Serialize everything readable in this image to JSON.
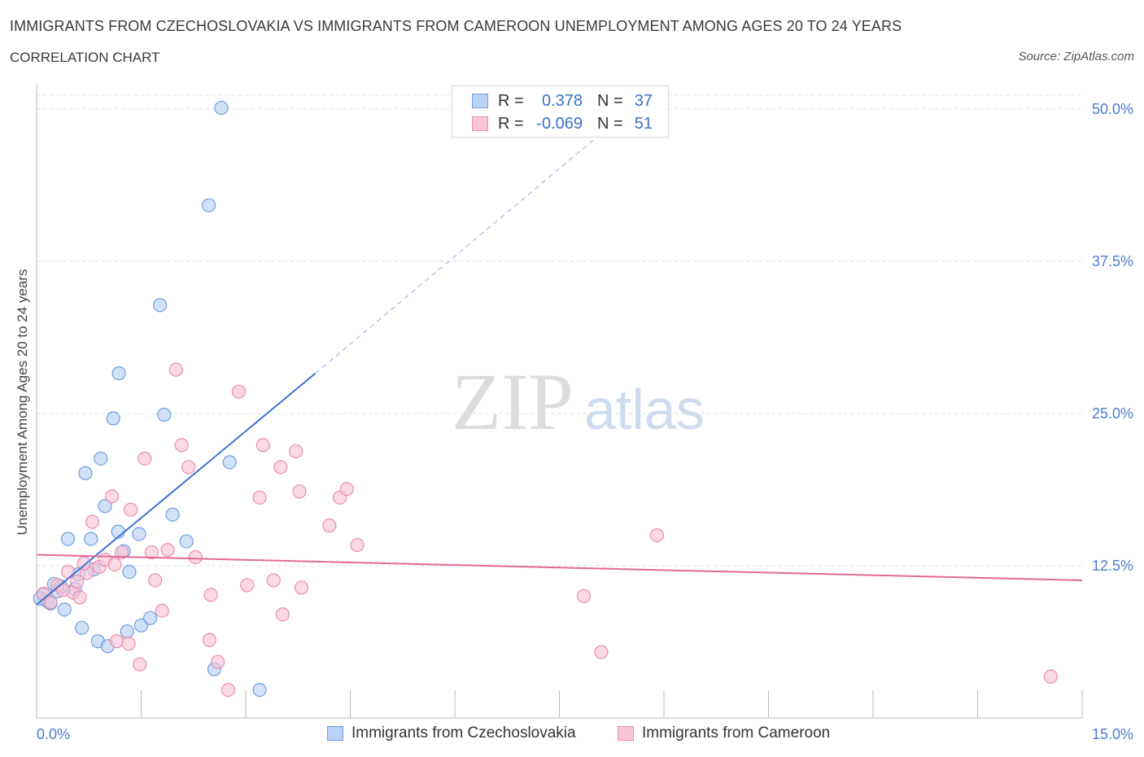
{
  "title": "IMMIGRANTS FROM CZECHOSLOVAKIA VS IMMIGRANTS FROM CAMEROON UNEMPLOYMENT AMONG AGES 20 TO 24 YEARS",
  "subtitle": "CORRELATION CHART",
  "source": "Source: ZipAtlas.com",
  "watermark": {
    "zip": "ZIP",
    "atlas": "atlas"
  },
  "legend": {
    "rows": [
      {
        "r_label": "R =",
        "r_value": "0.378",
        "n_label": "N =",
        "n_value": "37",
        "fill": "#b9d2f5",
        "stroke": "#6f9fe0"
      },
      {
        "r_label": "R =",
        "r_value": "-0.069",
        "n_label": "N =",
        "n_value": "51",
        "fill": "#f8c5d6",
        "stroke": "#e88fae"
      }
    ]
  },
  "bottom_legend": [
    {
      "label": "Immigrants from Czechoslovakia"
    },
    {
      "label": "Immigrants from Cameroon"
    }
  ],
  "chart_data": {
    "type": "scatter",
    "ylabel": "Unemployment Among Ages 20 to 24 years",
    "xlim": [
      0,
      15
    ],
    "ylim": [
      0,
      50
    ],
    "x_tick_labels": [
      "0.0%",
      "15.0%"
    ],
    "y_tick_labels": [
      {
        "value": 12.5,
        "label": "12.5%"
      },
      {
        "value": 25,
        "label": "25.0%"
      },
      {
        "value": 37.5,
        "label": "37.5%"
      },
      {
        "value": 50,
        "label": "50.0%"
      }
    ],
    "grid": true,
    "series": [
      {
        "name": "Immigrants from Czechoslovakia",
        "color": "#6f9fe0",
        "fill": "#b9d2f5",
        "trend": {
          "x0": 0.0,
          "y0": 9.3,
          "x1": 4.0,
          "y1": 28.3,
          "dash_to_x": 8.1,
          "dash_to_y": 48.0
        },
        "points": [
          [
            0.1,
            10.1
          ],
          [
            0.15,
            9.6
          ],
          [
            0.2,
            9.4
          ],
          [
            0.25,
            11.0
          ],
          [
            0.3,
            10.4
          ],
          [
            0.35,
            10.8
          ],
          [
            0.4,
            8.9
          ],
          [
            0.45,
            14.7
          ],
          [
            0.55,
            10.6
          ],
          [
            0.6,
            11.8
          ],
          [
            0.65,
            7.4
          ],
          [
            0.7,
            20.1
          ],
          [
            0.78,
            14.7
          ],
          [
            0.82,
            12.2
          ],
          [
            0.88,
            6.3
          ],
          [
            0.92,
            21.3
          ],
          [
            0.98,
            17.4
          ],
          [
            1.02,
            5.9
          ],
          [
            1.1,
            24.6
          ],
          [
            1.17,
            15.3
          ],
          [
            1.18,
            28.3
          ],
          [
            1.25,
            13.7
          ],
          [
            1.3,
            7.1
          ],
          [
            1.33,
            12.0
          ],
          [
            1.47,
            15.1
          ],
          [
            1.5,
            7.6
          ],
          [
            1.63,
            8.2
          ],
          [
            1.77,
            33.9
          ],
          [
            1.83,
            24.9
          ],
          [
            1.95,
            16.7
          ],
          [
            2.15,
            14.5
          ],
          [
            2.47,
            42.1
          ],
          [
            2.55,
            4.0
          ],
          [
            2.65,
            50.1
          ],
          [
            2.77,
            21.0
          ],
          [
            3.2,
            2.3
          ],
          [
            0.05,
            9.8
          ]
        ]
      },
      {
        "name": "Immigrants from Cameroon",
        "color": "#e88fae",
        "fill": "#f8c5d6",
        "trend": {
          "x0": 0.0,
          "y0": 13.4,
          "x1": 15.0,
          "y1": 11.3
        },
        "points": [
          [
            0.1,
            10.2
          ],
          [
            0.2,
            9.5
          ],
          [
            0.3,
            10.9
          ],
          [
            0.45,
            12.0
          ],
          [
            0.52,
            10.3
          ],
          [
            0.62,
            9.9
          ],
          [
            0.72,
            11.9
          ],
          [
            0.8,
            16.1
          ],
          [
            0.9,
            12.4
          ],
          [
            0.98,
            13.0
          ],
          [
            1.08,
            18.2
          ],
          [
            1.15,
            6.3
          ],
          [
            1.22,
            13.6
          ],
          [
            1.32,
            6.1
          ],
          [
            1.35,
            17.1
          ],
          [
            1.48,
            4.4
          ],
          [
            1.55,
            21.3
          ],
          [
            1.65,
            13.6
          ],
          [
            1.7,
            11.3
          ],
          [
            1.8,
            8.8
          ],
          [
            1.88,
            13.8
          ],
          [
            2.0,
            28.6
          ],
          [
            2.08,
            22.4
          ],
          [
            2.18,
            20.6
          ],
          [
            2.48,
            6.4
          ],
          [
            2.5,
            10.1
          ],
          [
            2.6,
            4.6
          ],
          [
            2.75,
            2.3
          ],
          [
            2.9,
            26.8
          ],
          [
            3.02,
            10.9
          ],
          [
            3.2,
            18.1
          ],
          [
            3.25,
            22.4
          ],
          [
            3.4,
            11.3
          ],
          [
            3.5,
            20.6
          ],
          [
            3.53,
            8.5
          ],
          [
            3.72,
            21.9
          ],
          [
            3.77,
            18.6
          ],
          [
            3.8,
            10.7
          ],
          [
            4.2,
            15.8
          ],
          [
            4.35,
            18.1
          ],
          [
            4.45,
            18.8
          ],
          [
            4.6,
            14.2
          ],
          [
            7.85,
            10.0
          ],
          [
            8.1,
            5.4
          ],
          [
            8.9,
            15.0
          ],
          [
            14.55,
            3.4
          ],
          [
            0.38,
            10.5
          ],
          [
            0.58,
            11.2
          ],
          [
            0.68,
            12.7
          ],
          [
            1.12,
            12.6
          ],
          [
            2.28,
            13.2
          ]
        ]
      }
    ]
  }
}
